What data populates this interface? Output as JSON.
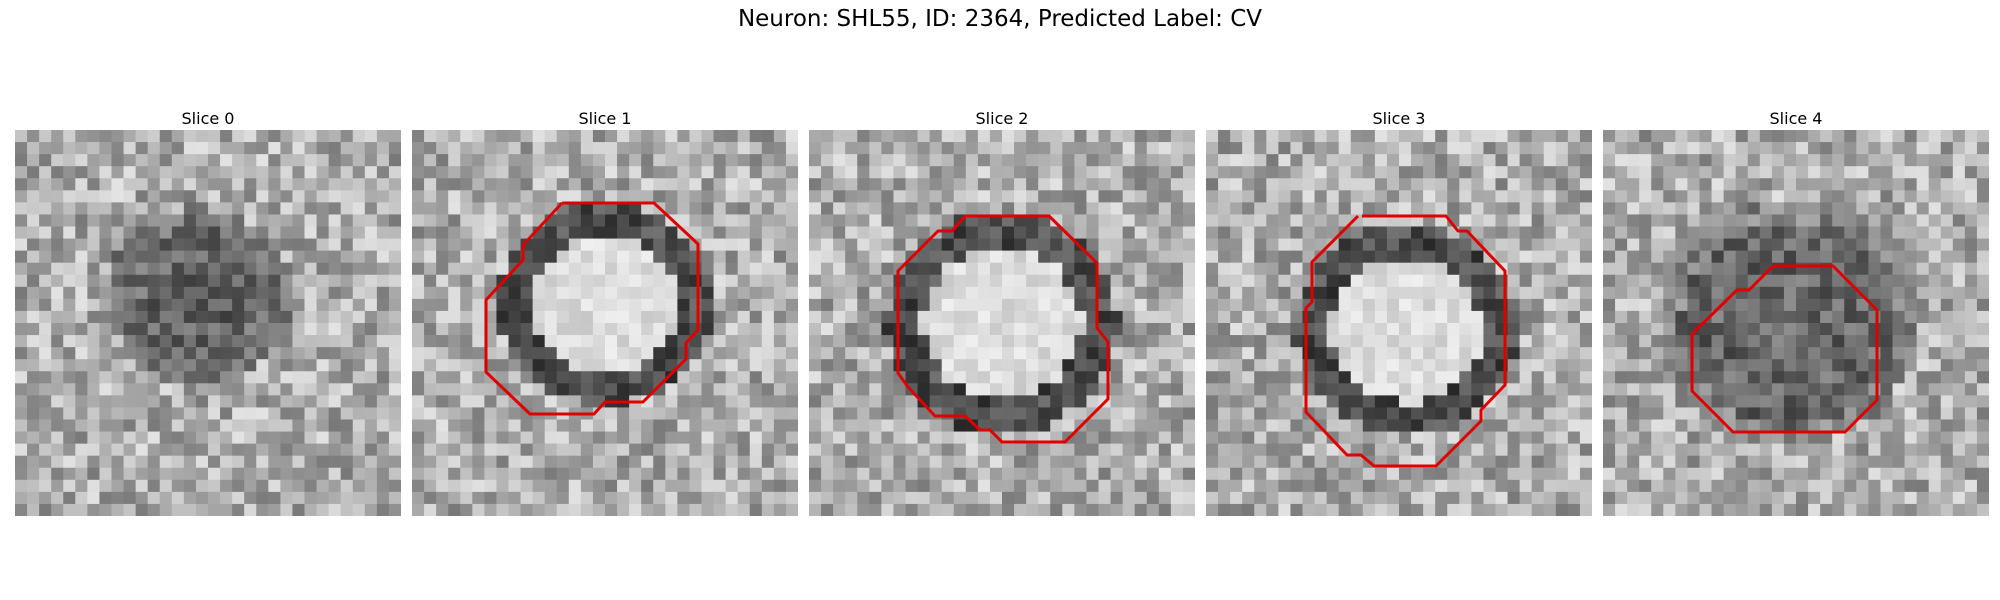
{
  "title": "Neuron: SHL55, ID: 2364, Predicted Label: CV",
  "outline_color": "#e00000",
  "slices": [
    {
      "label": "Slice 0",
      "has_outline": false,
      "contrast": "low"
    },
    {
      "label": "Slice 1",
      "has_outline": true,
      "contrast": "bright-center"
    },
    {
      "label": "Slice 2",
      "has_outline": true,
      "contrast": "bright-center"
    },
    {
      "label": "Slice 3",
      "has_outline": true,
      "contrast": "bright-center"
    },
    {
      "label": "Slice 4",
      "has_outline": true,
      "contrast": "dark-center"
    }
  ]
}
